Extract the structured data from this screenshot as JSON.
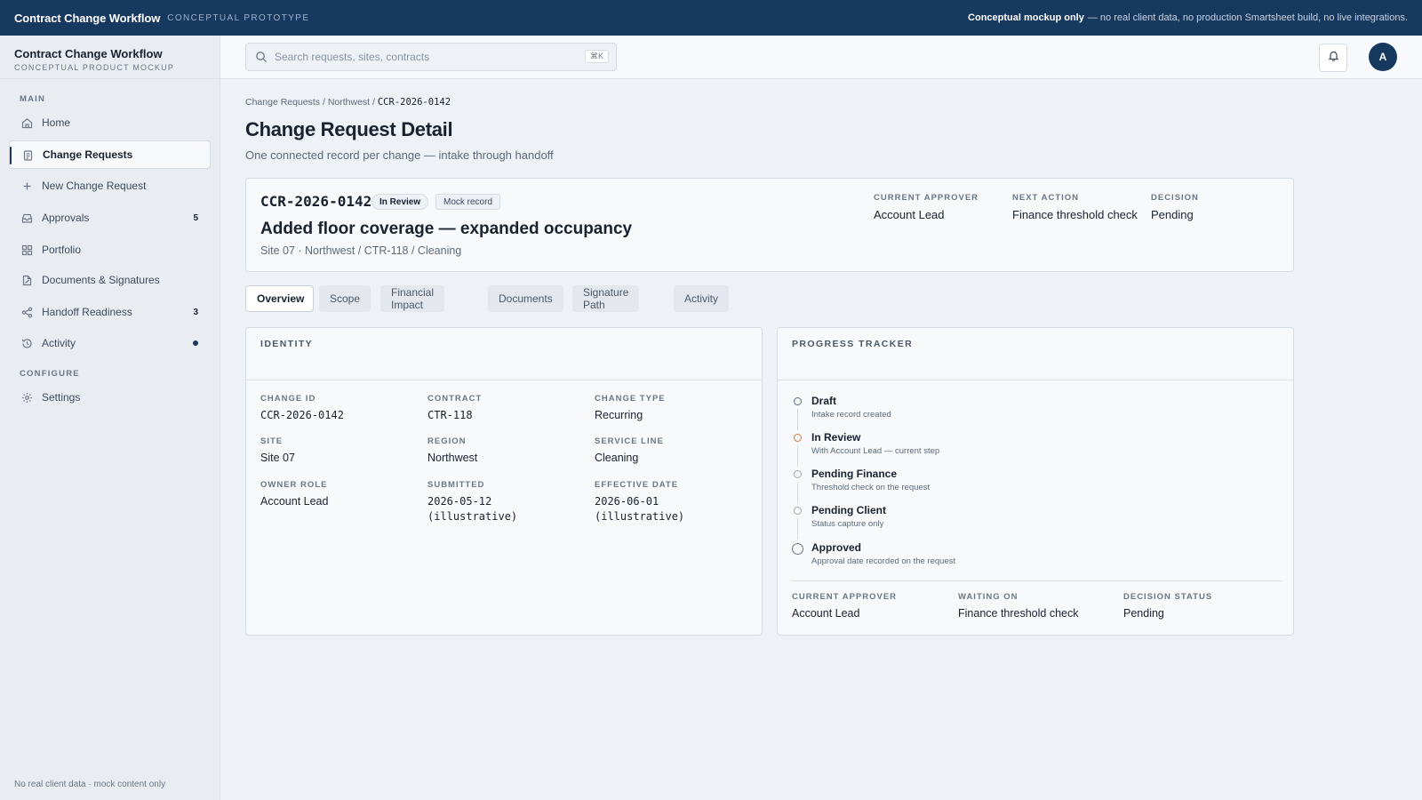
{
  "banner": {
    "title": "Contract Change Workflow",
    "subtitle": "CONCEPTUAL PROTOTYPE",
    "notice_bold": "Conceptual mockup only",
    "notice_rest": "— no real client data, no production Smartsheet build, no live integrations."
  },
  "sidebar": {
    "title": "Contract Change Workflow",
    "subtitle": "CONCEPTUAL PRODUCT MOCKUP",
    "section_main": "MAIN",
    "section_configure": "CONFIGURE",
    "items": [
      {
        "label": "Home",
        "icon": "home-icon"
      },
      {
        "label": "Change Requests",
        "icon": "clipboard-icon"
      },
      {
        "label": "New Change Request",
        "icon": "plus-icon"
      },
      {
        "label": "Approvals",
        "icon": "inbox-icon",
        "count": "5"
      },
      {
        "label": "Portfolio",
        "icon": "grid-icon"
      },
      {
        "label": "Documents & Signatures",
        "icon": "document-icon"
      },
      {
        "label": "Handoff Readiness",
        "icon": "share-icon",
        "count": "3"
      },
      {
        "label": "Activity",
        "icon": "history-icon"
      },
      {
        "label": "Settings",
        "icon": "gear-icon"
      }
    ],
    "footer": "No real client data · mock content only"
  },
  "topbar": {
    "search_placeholder": "Search requests, sites, contracts",
    "shortcut": "⌘K",
    "avatar_initial": "A"
  },
  "breadcrumb": {
    "part1": "Change Requests",
    "sep": "/",
    "part2": "Northwest",
    "current": "CCR-2026-0142"
  },
  "page": {
    "title": "Change Request Detail",
    "subtitle": "One connected record per change — intake through handoff"
  },
  "summary": {
    "id": "CCR-2026-0142",
    "status_pill": "In Review",
    "record_pill": "Mock record",
    "title": "Added floor coverage — expanded occupancy",
    "meta": "Site 07 · Northwest / CTR-118 / Cleaning",
    "current_approver_label": "CURRENT APPROVER",
    "current_approver": "Account Lead",
    "next_action_label": "NEXT ACTION",
    "next_action": "Finance threshold check",
    "decision_label": "DECISION",
    "decision": "Pending"
  },
  "tabs": [
    "Overview",
    "Scope",
    "Financial Impact",
    "Documents",
    "Signature Path",
    "Activity"
  ],
  "identity": {
    "heading": "IDENTITY",
    "fields": [
      {
        "label": "CHANGE ID",
        "value": "CCR-2026-0142"
      },
      {
        "label": "CONTRACT",
        "value": "CTR-118"
      },
      {
        "label": "CHANGE TYPE",
        "value": "Recurring"
      },
      {
        "label": "SITE",
        "value": "Site 07"
      },
      {
        "label": "REGION",
        "value": "Northwest"
      },
      {
        "label": "SERVICE LINE",
        "value": "Cleaning"
      },
      {
        "label": "OWNER ROLE",
        "value": "Account Lead"
      },
      {
        "label": "SUBMITTED",
        "value": "2026-05-12 (illustrative)"
      },
      {
        "label": "EFFECTIVE DATE",
        "value": "2026-06-01 (illustrative)"
      }
    ]
  },
  "tracker": {
    "heading": "PROGRESS TRACKER",
    "steps": [
      {
        "label": "Draft",
        "desc": "Intake record created"
      },
      {
        "label": "In Review",
        "desc": "With Account Lead — current step"
      },
      {
        "label": "Pending Finance",
        "desc": "Threshold check on the request"
      },
      {
        "label": "Pending Client",
        "desc": "Status capture only"
      },
      {
        "label": "Approved",
        "desc": "Approval date recorded on the request"
      }
    ],
    "current_approver_label": "CURRENT APPROVER",
    "current_approver": "Account Lead",
    "waiting_on_label": "WAITING ON",
    "waiting_on": "Finance threshold check",
    "decision_status_label": "DECISION STATUS",
    "decision_status": "Pending"
  },
  "colors": {
    "brand_navy": "#17385f",
    "current_step": "#d4793a",
    "background": "#eef1f5"
  }
}
